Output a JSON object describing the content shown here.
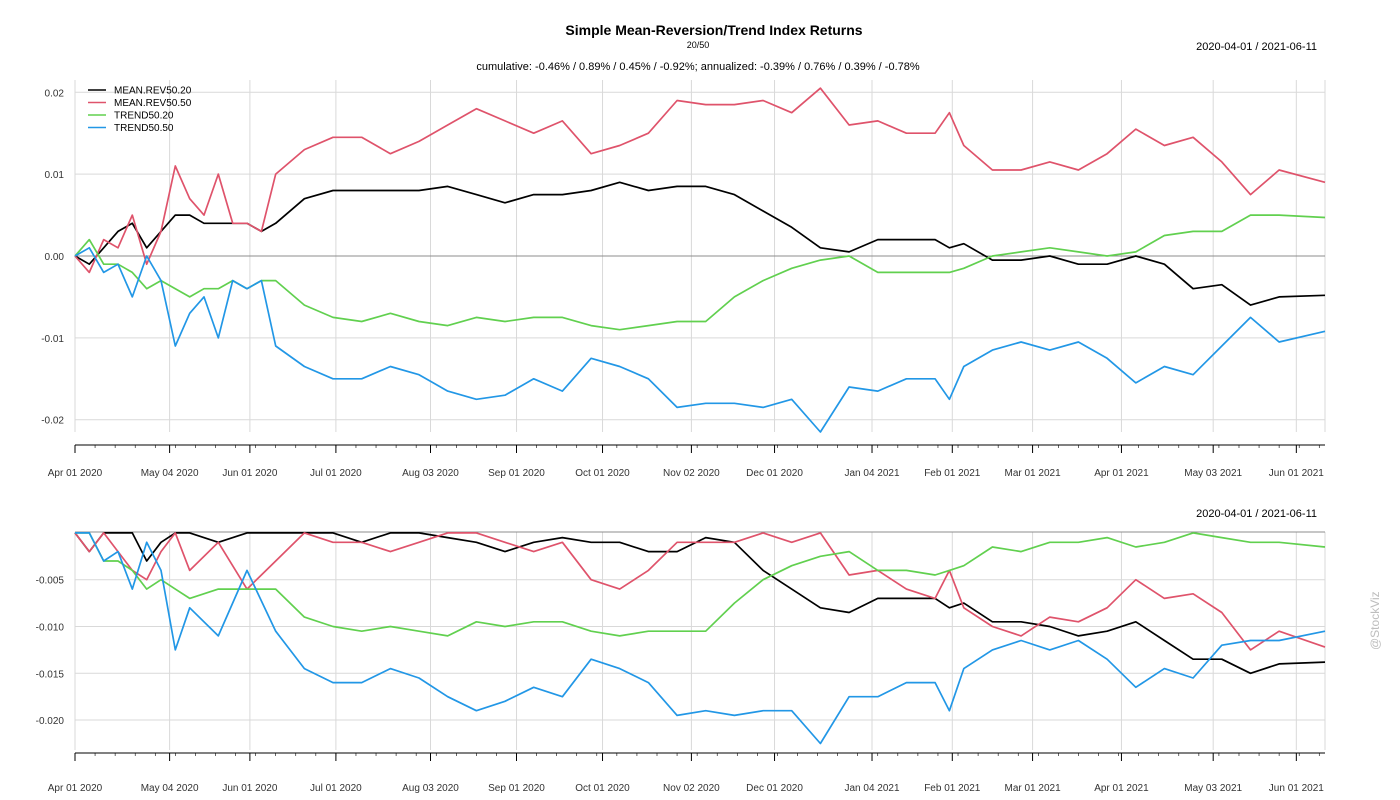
{
  "chart_data": [
    {
      "type": "line",
      "title": "Simple Mean-Reversion/Trend Index Returns",
      "subtitle": "20/50",
      "date_range": "2020-04-01 / 2021-06-11",
      "stats": "cumulative: -0.46% / 0.89% / 0.45% / -0.92%; annualized: -0.39% / 0.76% / 0.39% / -0.78%",
      "panel": "cumulative",
      "ylim": [
        -0.0215,
        0.0215
      ],
      "yticks": [
        0.02,
        0.01,
        0.0,
        -0.01,
        -0.02
      ],
      "ytick_labels": [
        "0.02",
        "0.01",
        "0.00",
        "-0.01",
        "-0.02"
      ],
      "x_ticks": [
        0,
        33,
        61,
        91,
        124,
        154,
        184,
        215,
        244,
        278,
        306,
        334,
        365,
        397,
        426
      ],
      "x_labels": [
        "Apr 01 2020",
        "May 04 2020",
        "Jun 01 2020",
        "Jul 01 2020",
        "Aug 03 2020",
        "Sep 01 2020",
        "Oct 01 2020",
        "Nov 02 2020",
        "Dec 01 2020",
        "Jan 04 2021",
        "Feb 01 2021",
        "Mar 01 2021",
        "Apr 01 2021",
        "May 03 2021",
        "Jun 01 2021"
      ],
      "xlim": [
        0,
        436
      ],
      "legend_position": "top-left",
      "series": [
        {
          "name": "MEAN.REV50.20",
          "color": "#000000",
          "x": [
            0,
            5,
            10,
            15,
            20,
            25,
            30,
            35,
            40,
            45,
            50,
            55,
            60,
            65,
            70,
            80,
            90,
            100,
            110,
            120,
            130,
            140,
            150,
            160,
            170,
            180,
            190,
            200,
            210,
            220,
            230,
            240,
            250,
            260,
            270,
            280,
            290,
            300,
            305,
            310,
            320,
            330,
            340,
            350,
            360,
            370,
            380,
            390,
            400,
            410,
            420,
            436
          ],
          "values": [
            0.0,
            -0.001,
            0.001,
            0.003,
            0.004,
            0.001,
            0.003,
            0.005,
            0.005,
            0.004,
            0.004,
            0.004,
            0.004,
            0.003,
            0.004,
            0.007,
            0.008,
            0.008,
            0.008,
            0.008,
            0.0085,
            0.0075,
            0.0065,
            0.0075,
            0.0075,
            0.008,
            0.009,
            0.008,
            0.0085,
            0.0085,
            0.0075,
            0.0055,
            0.0035,
            0.001,
            0.0005,
            0.002,
            0.002,
            0.002,
            0.001,
            0.0015,
            -0.0005,
            -0.0005,
            0.0,
            -0.001,
            -0.001,
            0.0,
            -0.001,
            -0.004,
            -0.0035,
            -0.006,
            -0.005,
            -0.0048
          ]
        },
        {
          "name": "MEAN.REV50.50",
          "color": "#df536b",
          "x": [
            0,
            5,
            10,
            15,
            20,
            25,
            30,
            35,
            40,
            45,
            50,
            55,
            60,
            65,
            70,
            80,
            90,
            100,
            110,
            120,
            130,
            140,
            150,
            160,
            170,
            180,
            190,
            200,
            210,
            220,
            230,
            240,
            250,
            260,
            270,
            280,
            290,
            300,
            305,
            310,
            320,
            330,
            340,
            350,
            360,
            370,
            380,
            390,
            400,
            410,
            420,
            436
          ],
          "values": [
            0.0,
            -0.002,
            0.002,
            0.001,
            0.005,
            -0.001,
            0.003,
            0.011,
            0.007,
            0.005,
            0.01,
            0.004,
            0.004,
            0.003,
            0.01,
            0.013,
            0.0145,
            0.0145,
            0.0125,
            0.014,
            0.016,
            0.018,
            0.0165,
            0.015,
            0.0165,
            0.0125,
            0.0135,
            0.015,
            0.019,
            0.0185,
            0.0185,
            0.019,
            0.0175,
            0.0205,
            0.016,
            0.0165,
            0.015,
            0.015,
            0.0175,
            0.0135,
            0.0105,
            0.0105,
            0.0115,
            0.0105,
            0.0125,
            0.0155,
            0.0135,
            0.0145,
            0.0115,
            0.0075,
            0.0105,
            0.009
          ]
        },
        {
          "name": "TREND50.20",
          "color": "#61d04f",
          "x": [
            0,
            5,
            10,
            15,
            20,
            25,
            30,
            35,
            40,
            45,
            50,
            55,
            60,
            65,
            70,
            80,
            90,
            100,
            110,
            120,
            130,
            140,
            150,
            160,
            170,
            180,
            190,
            200,
            210,
            220,
            230,
            240,
            250,
            260,
            270,
            280,
            290,
            300,
            305,
            310,
            320,
            330,
            340,
            350,
            360,
            370,
            380,
            390,
            400,
            410,
            420,
            436
          ],
          "values": [
            0.0,
            0.002,
            -0.001,
            -0.001,
            -0.002,
            -0.004,
            -0.003,
            -0.004,
            -0.005,
            -0.004,
            -0.004,
            -0.003,
            -0.004,
            -0.003,
            -0.003,
            -0.006,
            -0.0075,
            -0.008,
            -0.007,
            -0.008,
            -0.0085,
            -0.0075,
            -0.008,
            -0.0075,
            -0.0075,
            -0.0085,
            -0.009,
            -0.0085,
            -0.008,
            -0.008,
            -0.005,
            -0.003,
            -0.0015,
            -0.0005,
            0.0,
            -0.002,
            -0.002,
            -0.002,
            -0.002,
            -0.0015,
            0.0,
            0.0005,
            0.001,
            0.0005,
            0.0,
            0.0005,
            0.0025,
            0.003,
            0.003,
            0.005,
            0.005,
            0.0047
          ]
        },
        {
          "name": "TREND50.50",
          "color": "#2297e6",
          "x": [
            0,
            5,
            10,
            15,
            20,
            25,
            30,
            35,
            40,
            45,
            50,
            55,
            60,
            65,
            70,
            80,
            90,
            100,
            110,
            120,
            130,
            140,
            150,
            160,
            170,
            180,
            190,
            200,
            210,
            220,
            230,
            240,
            250,
            260,
            270,
            280,
            290,
            300,
            305,
            310,
            320,
            330,
            340,
            350,
            360,
            370,
            380,
            390,
            400,
            410,
            420,
            436
          ],
          "values": [
            0.0,
            0.001,
            -0.002,
            -0.001,
            -0.005,
            0.0,
            -0.003,
            -0.011,
            -0.007,
            -0.005,
            -0.01,
            -0.003,
            -0.004,
            -0.003,
            -0.011,
            -0.0135,
            -0.015,
            -0.015,
            -0.0135,
            -0.0145,
            -0.0165,
            -0.0175,
            -0.017,
            -0.015,
            -0.0165,
            -0.0125,
            -0.0135,
            -0.015,
            -0.0185,
            -0.018,
            -0.018,
            -0.0185,
            -0.0175,
            -0.0215,
            -0.016,
            -0.0165,
            -0.015,
            -0.015,
            -0.0175,
            -0.0135,
            -0.0115,
            -0.0105,
            -0.0115,
            -0.0105,
            -0.0125,
            -0.0155,
            -0.0135,
            -0.0145,
            -0.011,
            -0.0075,
            -0.0105,
            -0.0092
          ]
        }
      ]
    },
    {
      "type": "line",
      "panel": "drawdown",
      "date_range": "2020-04-01 / 2021-06-11",
      "ylim": [
        -0.0232,
        0.0001
      ],
      "yticks": [
        -0.005,
        -0.01,
        -0.015,
        -0.02
      ],
      "ytick_labels": [
        "-0.005",
        "-0.010",
        "-0.015",
        "-0.020"
      ],
      "x_ticks": [
        0,
        33,
        61,
        91,
        124,
        154,
        184,
        215,
        244,
        278,
        306,
        334,
        365,
        397,
        426
      ],
      "x_labels": [
        "Apr 01 2020",
        "May 04 2020",
        "Jun 01 2020",
        "Jul 01 2020",
        "Aug 03 2020",
        "Sep 01 2020",
        "Oct 01 2020",
        "Nov 02 2020",
        "Dec 01 2020",
        "Jan 04 2021",
        "Feb 01 2021",
        "Mar 01 2021",
        "Apr 01 2021",
        "May 03 2021",
        "Jun 01 2021"
      ],
      "xlim": [
        0,
        436
      ],
      "series": [
        {
          "name": "MEAN.REV50.20",
          "color": "#000000",
          "x": [
            0,
            5,
            10,
            15,
            20,
            25,
            30,
            35,
            40,
            50,
            60,
            70,
            80,
            90,
            100,
            110,
            120,
            130,
            140,
            150,
            160,
            170,
            180,
            190,
            200,
            210,
            220,
            230,
            240,
            250,
            260,
            270,
            280,
            290,
            300,
            305,
            310,
            320,
            330,
            340,
            350,
            360,
            370,
            380,
            390,
            400,
            410,
            420,
            436
          ],
          "values": [
            0.0,
            -0.002,
            0.0,
            0.0,
            0.0,
            -0.003,
            -0.001,
            0.0,
            0.0,
            -0.001,
            0.0,
            0.0,
            0.0,
            0.0,
            -0.001,
            0.0,
            0.0,
            -0.0005,
            -0.001,
            -0.002,
            -0.001,
            -0.0005,
            -0.001,
            -0.001,
            -0.002,
            -0.002,
            -0.0005,
            -0.001,
            -0.004,
            -0.006,
            -0.008,
            -0.0085,
            -0.007,
            -0.007,
            -0.007,
            -0.008,
            -0.0075,
            -0.0095,
            -0.0095,
            -0.01,
            -0.011,
            -0.0105,
            -0.0095,
            -0.0115,
            -0.0135,
            -0.0135,
            -0.015,
            -0.014,
            -0.0138
          ]
        },
        {
          "name": "MEAN.REV50.50",
          "color": "#df536b",
          "x": [
            0,
            5,
            10,
            15,
            20,
            25,
            30,
            35,
            40,
            50,
            60,
            70,
            80,
            90,
            100,
            110,
            120,
            130,
            140,
            150,
            160,
            170,
            180,
            190,
            200,
            210,
            220,
            230,
            240,
            250,
            260,
            270,
            280,
            290,
            300,
            305,
            310,
            320,
            330,
            340,
            350,
            360,
            370,
            380,
            390,
            400,
            410,
            420,
            436
          ],
          "values": [
            0.0,
            -0.002,
            0.0,
            -0.002,
            -0.004,
            -0.005,
            -0.002,
            0.0,
            -0.004,
            -0.001,
            -0.006,
            -0.003,
            0.0,
            -0.001,
            -0.001,
            -0.002,
            -0.001,
            0.0,
            0.0,
            -0.001,
            -0.002,
            -0.001,
            -0.005,
            -0.006,
            -0.004,
            -0.001,
            -0.001,
            -0.001,
            0.0,
            -0.001,
            0.0,
            -0.0045,
            -0.004,
            -0.006,
            -0.007,
            -0.004,
            -0.008,
            -0.01,
            -0.011,
            -0.009,
            -0.0095,
            -0.008,
            -0.005,
            -0.007,
            -0.0065,
            -0.0085,
            -0.0125,
            -0.0105,
            -0.0122
          ]
        },
        {
          "name": "TREND50.20",
          "color": "#61d04f",
          "x": [
            0,
            5,
            10,
            15,
            20,
            25,
            30,
            35,
            40,
            50,
            60,
            70,
            80,
            90,
            100,
            110,
            120,
            130,
            140,
            150,
            160,
            170,
            180,
            190,
            200,
            210,
            220,
            230,
            240,
            250,
            260,
            270,
            280,
            290,
            300,
            305,
            310,
            320,
            330,
            340,
            350,
            360,
            370,
            380,
            390,
            400,
            410,
            420,
            436
          ],
          "values": [
            0.0,
            0.0,
            -0.003,
            -0.003,
            -0.004,
            -0.006,
            -0.005,
            -0.006,
            -0.007,
            -0.006,
            -0.006,
            -0.006,
            -0.009,
            -0.01,
            -0.0105,
            -0.01,
            -0.0105,
            -0.011,
            -0.0095,
            -0.01,
            -0.0095,
            -0.0095,
            -0.0105,
            -0.011,
            -0.0105,
            -0.0105,
            -0.0105,
            -0.0075,
            -0.005,
            -0.0035,
            -0.0025,
            -0.002,
            -0.004,
            -0.004,
            -0.0045,
            -0.004,
            -0.0035,
            -0.0015,
            -0.002,
            -0.001,
            -0.001,
            -0.0005,
            -0.0015,
            -0.001,
            0.0,
            -0.0005,
            -0.001,
            -0.001,
            -0.0015
          ]
        },
        {
          "name": "TREND50.50",
          "color": "#2297e6",
          "x": [
            0,
            5,
            10,
            15,
            20,
            25,
            30,
            35,
            40,
            50,
            60,
            70,
            80,
            90,
            100,
            110,
            120,
            130,
            140,
            150,
            160,
            170,
            180,
            190,
            200,
            210,
            220,
            230,
            240,
            250,
            260,
            270,
            280,
            290,
            300,
            305,
            310,
            320,
            330,
            340,
            350,
            360,
            370,
            380,
            390,
            400,
            410,
            420,
            436
          ],
          "values": [
            0.0,
            0.0,
            -0.003,
            -0.002,
            -0.006,
            -0.001,
            -0.004,
            -0.0125,
            -0.008,
            -0.011,
            -0.004,
            -0.0105,
            -0.0145,
            -0.016,
            -0.016,
            -0.0145,
            -0.0155,
            -0.0175,
            -0.019,
            -0.018,
            -0.0165,
            -0.0175,
            -0.0135,
            -0.0145,
            -0.016,
            -0.0195,
            -0.019,
            -0.0195,
            -0.019,
            -0.019,
            -0.0225,
            -0.0175,
            -0.0175,
            -0.016,
            -0.016,
            -0.019,
            -0.0145,
            -0.0125,
            -0.0115,
            -0.0125,
            -0.0115,
            -0.0135,
            -0.0165,
            -0.0145,
            -0.0155,
            -0.012,
            -0.0115,
            -0.0115,
            -0.0105
          ]
        }
      ]
    }
  ],
  "watermark": "@StockViz"
}
